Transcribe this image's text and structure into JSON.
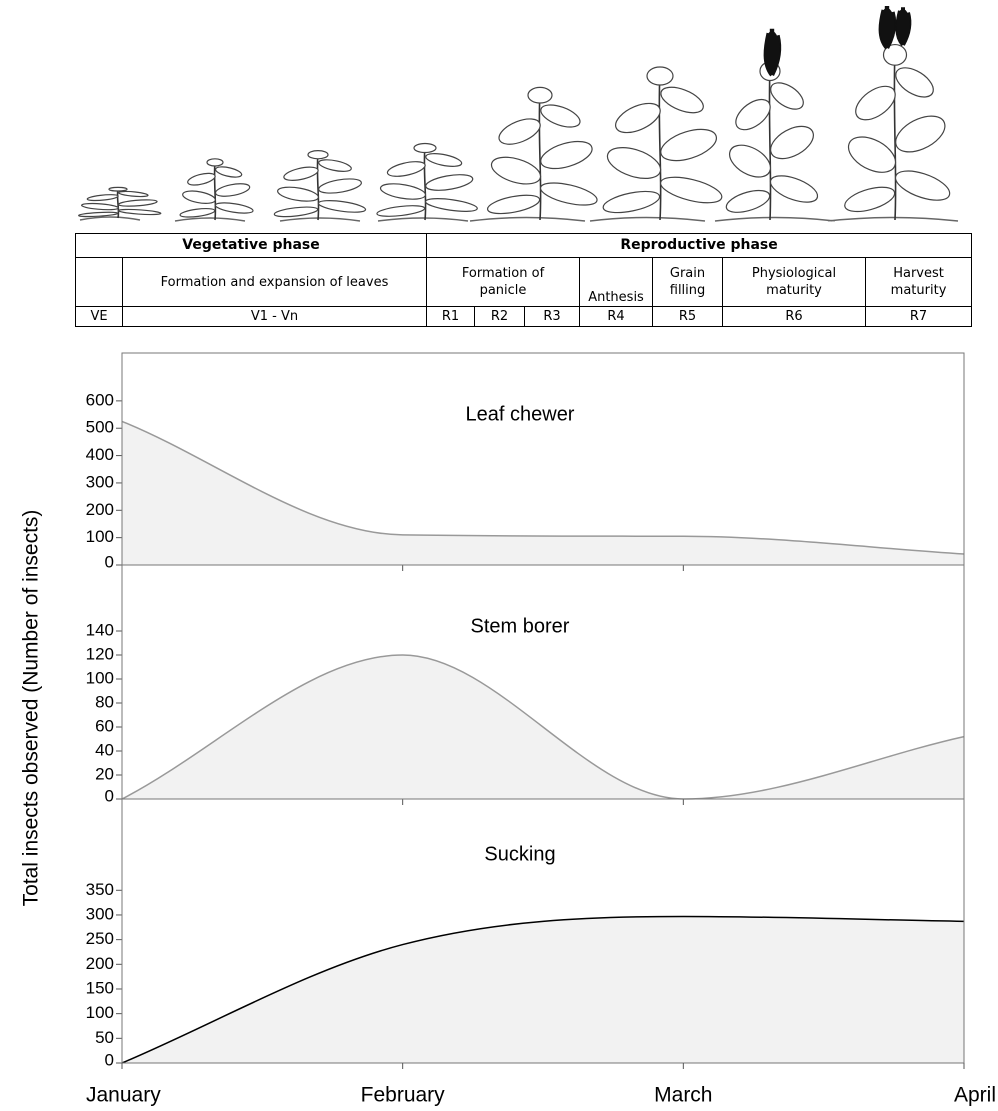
{
  "table": {
    "phases": [
      "Vegetative phase",
      "Reproductive phase"
    ],
    "stages": [
      "Formation and expansion of leaves",
      "Formation of panicle",
      "Anthesis",
      "Grain filling",
      "Physiological maturity",
      "Harvest maturity"
    ],
    "codes": [
      "VE",
      "V1 - Vn",
      "R1",
      "R2",
      "R3",
      "R4",
      "R5",
      "R6",
      "R7"
    ]
  },
  "y_label": "Total insects observed (Number of insects)",
  "chart_data": [
    {
      "type": "area",
      "title": "Leaf chewer",
      "values": [
        525,
        110,
        105,
        40
      ],
      "ylim": [
        0,
        775
      ],
      "yticks": [
        0,
        100,
        200,
        300,
        400,
        500,
        600
      ],
      "color": "#f2f2f2",
      "line_color": "#999999"
    },
    {
      "type": "area",
      "title": "Stem borer",
      "values": [
        0,
        120,
        0,
        52
      ],
      "ylim": [
        0,
        195
      ],
      "yticks": [
        0,
        20,
        40,
        60,
        80,
        100,
        120,
        140
      ],
      "color": "#f2f2f2",
      "line_color": "#999999"
    },
    {
      "type": "area",
      "title": "Sucking",
      "categories": [
        "January",
        "February",
        "March",
        "April"
      ],
      "values": [
        0,
        240,
        297,
        287
      ],
      "ylim": [
        0,
        535
      ],
      "yticks": [
        0,
        50,
        100,
        150,
        200,
        250,
        300,
        350
      ],
      "color": "#f2f2f2",
      "line_color": "#000000"
    }
  ]
}
